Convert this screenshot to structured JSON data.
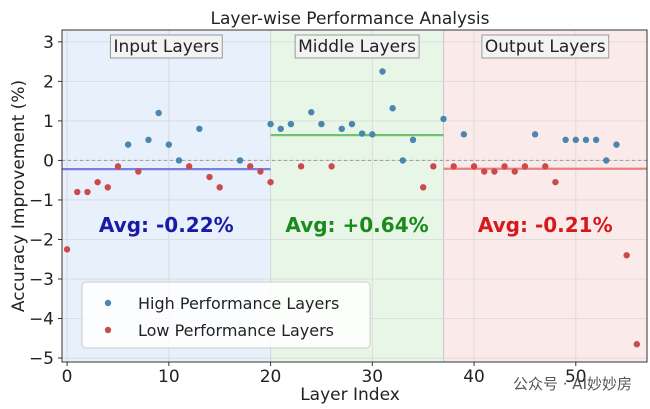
{
  "chart_data": {
    "type": "scatter",
    "title": "Layer-wise Performance Analysis",
    "xlabel": "Layer Index",
    "ylabel": "Accuracy Improvement (%)",
    "xlim": [
      -0.5,
      57
    ],
    "ylim": [
      -5.1,
      3.3
    ],
    "xticks": [
      "0",
      "10",
      "20",
      "30",
      "40",
      "50"
    ],
    "yticks": [
      "3",
      "2",
      "1",
      "0",
      "−1",
      "−2",
      "−3",
      "−4",
      "−5"
    ],
    "grid": true,
    "legend_position": "bottom-left",
    "regions": [
      {
        "label": "Input Layers",
        "x_start": -0.5,
        "x_end": 20,
        "avg": -0.22,
        "avg_label": "Avg: -0.22%",
        "color": "#1a1aa6",
        "fill": "#e8f0fb",
        "line": "#7b7ee0"
      },
      {
        "label": "Middle Layers",
        "x_start": 20,
        "x_end": 37,
        "avg": 0.64,
        "avg_label": "Avg: +0.64%",
        "color": "#1a8a1a",
        "fill": "#e8f6e8",
        "line": "#6cc46c"
      },
      {
        "label": "Output Layers",
        "x_start": 37,
        "x_end": 57,
        "avg": -0.21,
        "avg_label": "Avg: -0.21%",
        "color": "#d41a1a",
        "fill": "#fbeaea",
        "line": "#e88080"
      }
    ],
    "series": [
      {
        "name": "High Performance Layers",
        "color": "#4a86b0",
        "points": [
          [
            6,
            0.4
          ],
          [
            8,
            0.52
          ],
          [
            9,
            1.2
          ],
          [
            10,
            0.4
          ],
          [
            11,
            0.0
          ],
          [
            13,
            0.8
          ],
          [
            17,
            0.0
          ],
          [
            20,
            0.92
          ],
          [
            21,
            0.8
          ],
          [
            22,
            0.92
          ],
          [
            24,
            1.22
          ],
          [
            25,
            0.92
          ],
          [
            27,
            0.8
          ],
          [
            28,
            0.92
          ],
          [
            29,
            0.68
          ],
          [
            30,
            0.66
          ],
          [
            31,
            2.25
          ],
          [
            32,
            1.32
          ],
          [
            33,
            0.0
          ],
          [
            34,
            0.52
          ],
          [
            37,
            1.05
          ],
          [
            39,
            0.66
          ],
          [
            46,
            0.66
          ],
          [
            49,
            0.52
          ],
          [
            50,
            0.52
          ],
          [
            51,
            0.52
          ],
          [
            52,
            0.52
          ],
          [
            53,
            0.0
          ],
          [
            54,
            0.4
          ]
        ]
      },
      {
        "name": "Low Performance Layers",
        "color": "#cc4a4a",
        "points": [
          [
            0,
            -2.25
          ],
          [
            1,
            -0.8
          ],
          [
            2,
            -0.8
          ],
          [
            3,
            -0.55
          ],
          [
            4,
            -0.68
          ],
          [
            5,
            -0.15
          ],
          [
            7,
            -0.28
          ],
          [
            12,
            -0.15
          ],
          [
            14,
            -0.42
          ],
          [
            15,
            -0.68
          ],
          [
            18,
            -0.15
          ],
          [
            19,
            -0.28
          ],
          [
            20,
            -0.55
          ],
          [
            23,
            -0.15
          ],
          [
            26,
            -0.15
          ],
          [
            35,
            -0.68
          ],
          [
            36,
            -0.15
          ],
          [
            38,
            -0.15
          ],
          [
            40,
            -0.15
          ],
          [
            41,
            -0.28
          ],
          [
            42,
            -0.28
          ],
          [
            43,
            -0.15
          ],
          [
            44,
            -0.28
          ],
          [
            45,
            -0.15
          ],
          [
            47,
            -0.15
          ],
          [
            48,
            -0.55
          ],
          [
            55,
            -2.4
          ],
          [
            56,
            -4.65
          ]
        ]
      }
    ]
  },
  "watermark": "公众号 · AI妙妙房"
}
